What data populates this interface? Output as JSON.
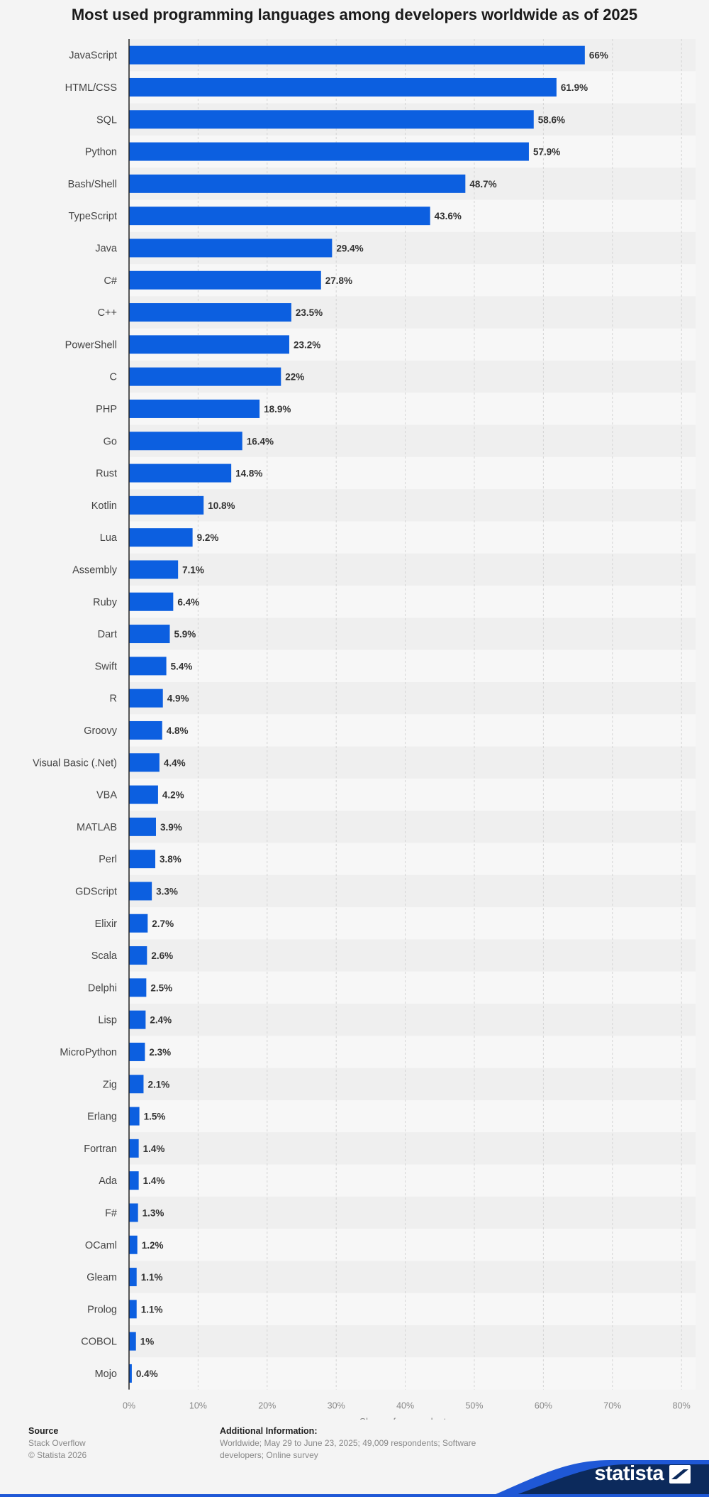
{
  "title": "Most used programming languages among developers worldwide as of 2025",
  "chart_data": {
    "type": "bar",
    "orientation": "horizontal",
    "title": "Most used programming languages among developers worldwide as of 2025",
    "xlabel": "Share of respondents",
    "ylabel": "",
    "xlim": [
      0,
      80
    ],
    "ticks": [
      "0%",
      "10%",
      "20%",
      "30%",
      "40%",
      "50%",
      "60%",
      "70%",
      "80%"
    ],
    "grid": true,
    "bar_color": "#0c5fe0",
    "categories": [
      "JavaScript",
      "HTML/CSS",
      "SQL",
      "Python",
      "Bash/Shell",
      "TypeScript",
      "Java",
      "C#",
      "C++",
      "PowerShell",
      "C",
      "PHP",
      "Go",
      "Rust",
      "Kotlin",
      "Lua",
      "Assembly",
      "Ruby",
      "Dart",
      "Swift",
      "R",
      "Groovy",
      "Visual Basic (.Net)",
      "VBA",
      "MATLAB",
      "Perl",
      "GDScript",
      "Elixir",
      "Scala",
      "Delphi",
      "Lisp",
      "MicroPython",
      "Zig",
      "Erlang",
      "Fortran",
      "Ada",
      "F#",
      "OCaml",
      "Gleam",
      "Prolog",
      "COBOL",
      "Mojo"
    ],
    "values": [
      66,
      61.9,
      58.6,
      57.9,
      48.7,
      43.6,
      29.4,
      27.8,
      23.5,
      23.2,
      22,
      18.9,
      16.4,
      14.8,
      10.8,
      9.2,
      7.1,
      6.4,
      5.9,
      5.4,
      4.9,
      4.8,
      4.4,
      4.2,
      3.9,
      3.8,
      3.3,
      2.7,
      2.6,
      2.5,
      2.4,
      2.3,
      2.1,
      1.5,
      1.4,
      1.4,
      1.3,
      1.2,
      1.1,
      1.1,
      1,
      0.4
    ],
    "labels": [
      "66%",
      "61.9%",
      "58.6%",
      "57.9%",
      "48.7%",
      "43.6%",
      "29.4%",
      "27.8%",
      "23.5%",
      "23.2%",
      "22%",
      "18.9%",
      "16.4%",
      "14.8%",
      "10.8%",
      "9.2%",
      "7.1%",
      "6.4%",
      "5.9%",
      "5.4%",
      "4.9%",
      "4.8%",
      "4.4%",
      "4.2%",
      "3.9%",
      "3.8%",
      "3.3%",
      "2.7%",
      "2.6%",
      "2.5%",
      "2.4%",
      "2.3%",
      "2.1%",
      "1.5%",
      "1.4%",
      "1.4%",
      "1.3%",
      "1.2%",
      "1.1%",
      "1.1%",
      "1%",
      "0.4%"
    ]
  },
  "source": {
    "heading": "Source",
    "lines": [
      "Stack Overflow",
      "© Statista 2026"
    ]
  },
  "additional": {
    "heading": "Additional Information:",
    "lines": [
      "Worldwide; May 29 to June 23, 2025; 49,009 respondents; Software",
      "developers; Online survey"
    ]
  },
  "brand": {
    "name": "statista",
    "color": "#0c2a5c",
    "accent": "#1f58d6"
  }
}
